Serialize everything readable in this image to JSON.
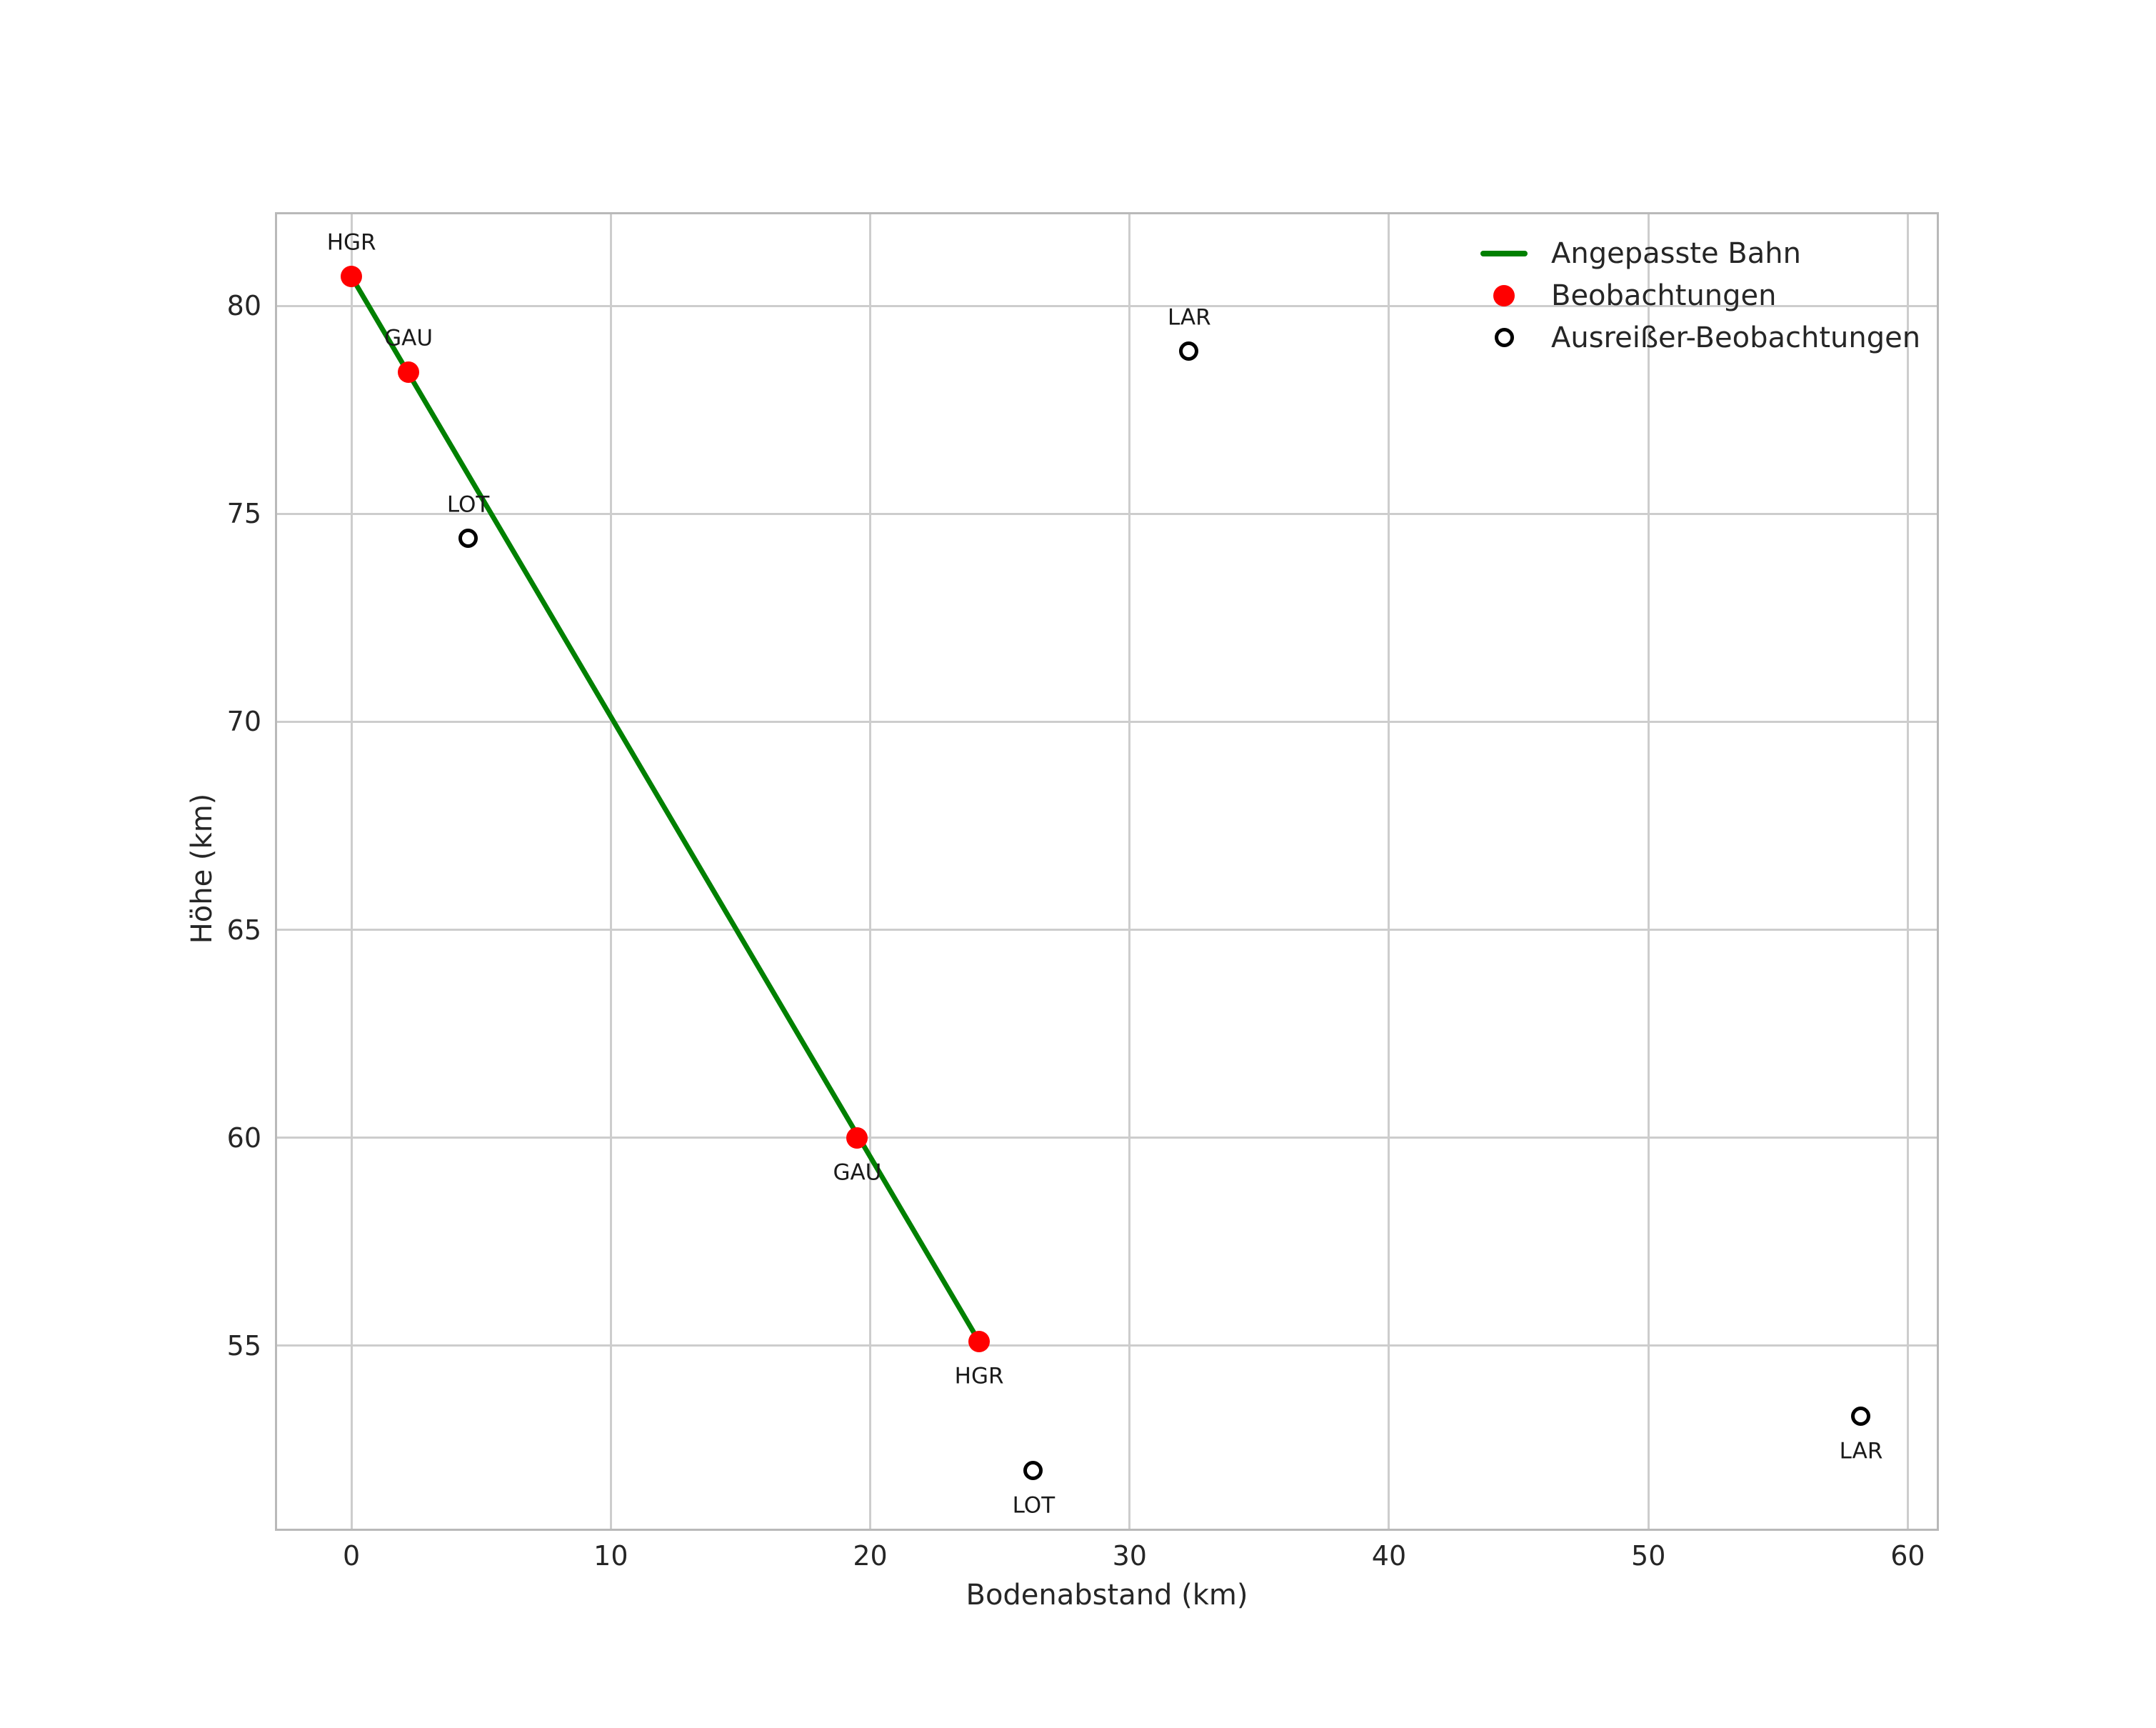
{
  "figure": {
    "background": "#ffffff"
  },
  "chart_data": {
    "type": "scatter",
    "title": "",
    "xlabel": "Bodenabstand (km)",
    "ylabel": "Höhe (km)",
    "xlim": [
      -2.95,
      61.2
    ],
    "ylim": [
      50.55,
      82.25
    ],
    "xticks": [
      0,
      10,
      20,
      30,
      40,
      50,
      60
    ],
    "yticks": [
      55,
      60,
      65,
      70,
      75,
      80
    ],
    "grid": true,
    "colors": {
      "fitted_line": "#008000",
      "observation": "#ff0000",
      "outlier": "#000000",
      "grid": "#cdcdcd",
      "spine": "#b9b9b9",
      "text": "#262626",
      "annotation": "#1a1a1a",
      "background": "#ffffff"
    },
    "fitted_line": {
      "name": "Angepasste Bahn",
      "color": "#008000",
      "points": [
        [
          0.0,
          80.7
        ],
        [
          24.2,
          55.1
        ]
      ]
    },
    "series": [
      {
        "name": "Beobachtungen",
        "marker": "filled-circle",
        "color": "#ff0000",
        "points": [
          {
            "x": 0.0,
            "y": 80.7,
            "label": "HGR",
            "label_side": "above"
          },
          {
            "x": 2.2,
            "y": 78.4,
            "label": "GAU",
            "label_side": "above"
          },
          {
            "x": 19.5,
            "y": 60.0,
            "label": "GAU",
            "label_side": "below"
          },
          {
            "x": 24.2,
            "y": 55.1,
            "label": "HGR",
            "label_side": "below"
          }
        ]
      },
      {
        "name": "Ausreißer-Beobachtungen",
        "marker": "open-circle",
        "color": "#000000",
        "points": [
          {
            "x": 4.5,
            "y": 74.4,
            "label": "LOT",
            "label_side": "above"
          },
          {
            "x": 32.3,
            "y": 78.9,
            "label": "LAR",
            "label_side": "above"
          },
          {
            "x": 26.3,
            "y": 52.0,
            "label": "LOT",
            "label_side": "below"
          },
          {
            "x": 58.2,
            "y": 53.3,
            "label": "LAR",
            "label_side": "below"
          }
        ]
      }
    ],
    "legend": {
      "position": "upper right",
      "frame": false,
      "items": [
        {
          "label": "Angepasste Bahn",
          "marker": "line",
          "color": "#008000"
        },
        {
          "label": "Beobachtungen",
          "marker": "filled-circle",
          "color": "#ff0000"
        },
        {
          "label": "Ausreißer-Beobachtungen",
          "marker": "open-circle",
          "color": "#000000"
        }
      ]
    }
  }
}
